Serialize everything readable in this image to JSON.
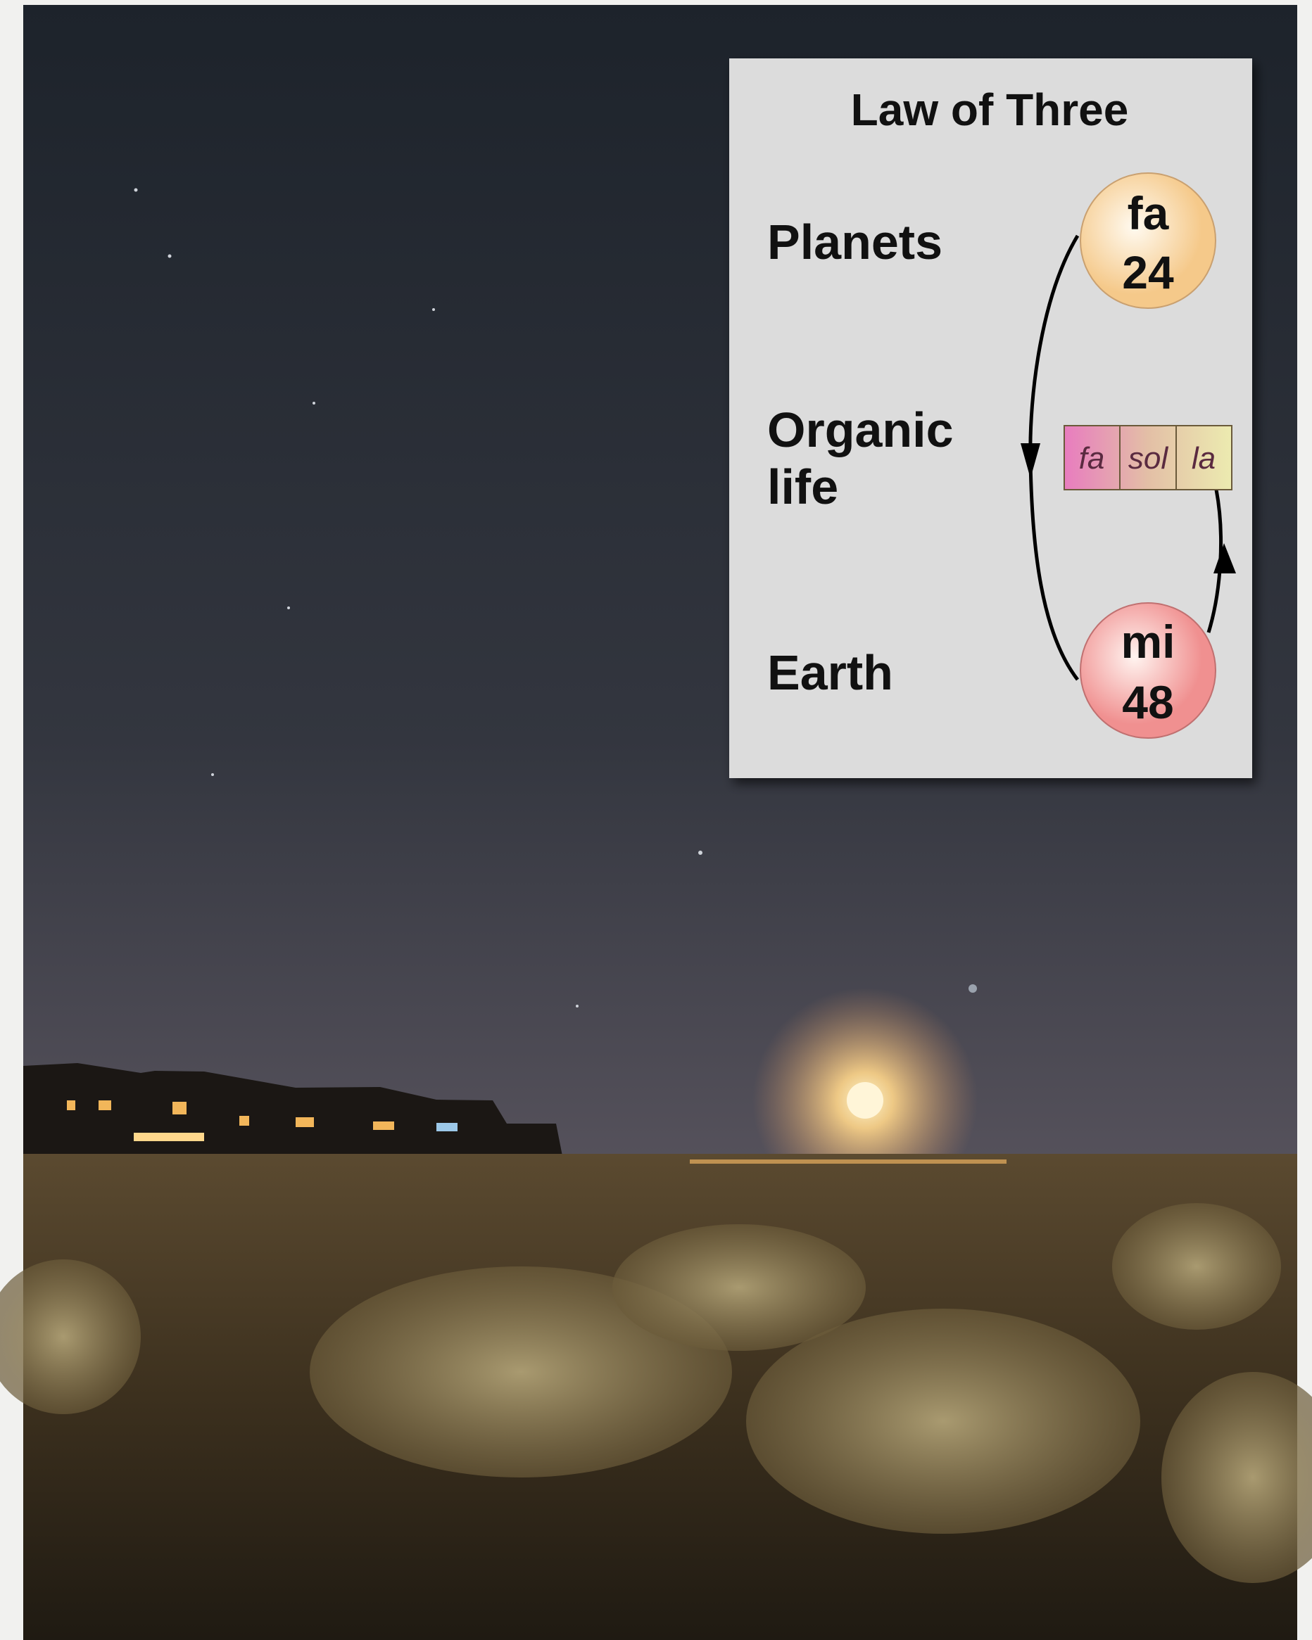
{
  "diagram": {
    "title": "Law of Three",
    "levels": [
      {
        "label": "Planets",
        "node": [
          "fa",
          "24"
        ]
      },
      {
        "label": [
          "Organic",
          "life"
        ],
        "notes": [
          "fa",
          "sol",
          "la"
        ]
      },
      {
        "label": "Earth",
        "node": [
          "mi",
          "48"
        ]
      }
    ]
  }
}
